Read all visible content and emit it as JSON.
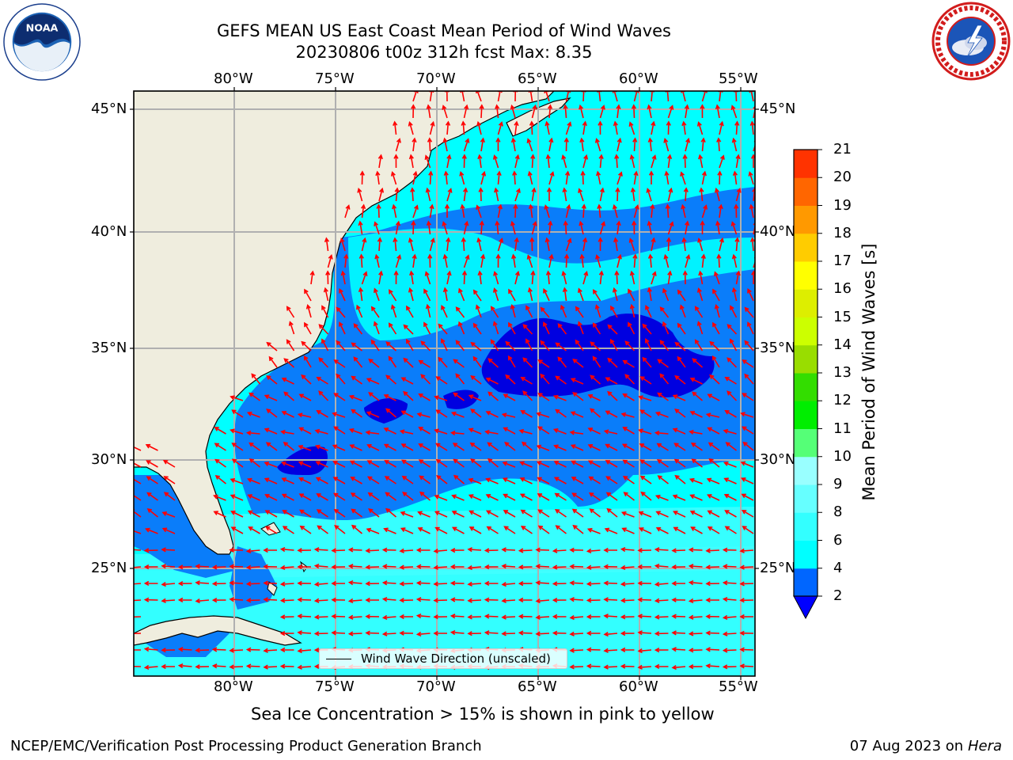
{
  "title_line1": "GEFS MEAN US East Coast Mean Period of Wind Waves",
  "title_line2": "20230806 t00z 312h fcst   Max: 8.35",
  "logos": {
    "left": "NOAA",
    "right": "NATIONAL WEATHER SERVICE"
  },
  "longitude_labels": [
    "80°W",
    "75°W",
    "70°W",
    "65°W",
    "60°W",
    "55°W"
  ],
  "latitude_labels": [
    "45°N",
    "40°N",
    "35°N",
    "30°N",
    "25°N"
  ],
  "legend_text": "Wind Wave Direction (unscaled)",
  "colorbar": {
    "label": "Mean Period of Wind Waves [s]",
    "ticks": [
      "2",
      "4",
      "6",
      "8",
      "9",
      "10",
      "11",
      "12",
      "13",
      "14",
      "15",
      "16",
      "17",
      "18",
      "19",
      "20",
      "21"
    ],
    "colors": [
      "#0066ff",
      "#00ffff",
      "#33ffff",
      "#66ffff",
      "#99ffff",
      "#55ff77",
      "#00ee00",
      "#33dd00",
      "#99dd00",
      "#ccff00",
      "#ddee00",
      "#ffff00",
      "#ffcc00",
      "#ff9900",
      "#ff6600",
      "#ff3300",
      "#ff0000"
    ]
  },
  "note": "Sea Ice Concentration > 15% is shown in pink to yellow",
  "credit": "NCEP/EMC/Verification Post Processing Product Generation Branch",
  "date_text": "07 Aug 2023 on",
  "date_machine": "Hera",
  "colors": {
    "land": "#efedde",
    "ocean_light": "#00ffff",
    "ocean_mid": "#0080ff",
    "ocean_dark": "#0000e0",
    "arrows": "#ff0000",
    "grid": "#b0b0b0"
  }
}
